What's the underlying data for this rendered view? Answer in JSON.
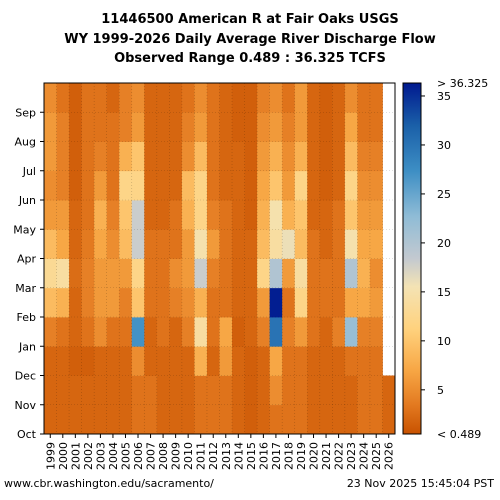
{
  "chart_data": {
    "type": "heatmap",
    "title": "11446500 American R at Fair Oaks USGS",
    "subtitle": "WY 1999-2026 Daily Average River Discharge Flow",
    "subtitle2": "Observed Range 0.489 : 36.325 TCFS",
    "x_categories": [
      "1999",
      "2000",
      "2001",
      "2002",
      "2003",
      "2004",
      "2005",
      "2006",
      "2007",
      "2008",
      "2009",
      "2010",
      "2011",
      "2012",
      "2013",
      "2014",
      "2015",
      "2016",
      "2017",
      "2018",
      "2019",
      "2020",
      "2021",
      "2022",
      "2023",
      "2024",
      "2025",
      "2026"
    ],
    "y_months": [
      "Oct",
      "Nov",
      "Dec",
      "Jan",
      "Feb",
      "Mar",
      "Apr",
      "May",
      "Jun",
      "Jul",
      "Aug",
      "Sep"
    ],
    "colorbar": {
      "ticks": [
        5,
        10,
        15,
        20,
        25,
        30,
        35
      ],
      "top_label": "> 36.325",
      "bottom_label": "< 0.489",
      "range": [
        0.489,
        36.325
      ]
    },
    "monthly_flow_tcfs": {
      "1999": [
        2,
        2,
        2,
        4,
        9,
        13,
        9,
        6,
        5,
        6,
        6,
        5
      ],
      "2000": [
        2,
        2,
        2,
        3,
        8,
        14,
        7,
        6,
        4,
        4,
        4,
        3
      ],
      "2001": [
        2,
        2,
        1.5,
        2,
        2,
        2.5,
        2,
        2,
        1.5,
        1.5,
        1.5,
        1.5
      ],
      "2002": [
        2,
        2,
        1.5,
        3,
        4,
        4,
        3.5,
        3,
        3,
        3,
        3,
        3
      ],
      "2003": [
        2,
        2,
        2,
        5,
        6,
        6,
        7,
        8,
        6,
        4,
        3,
        3
      ],
      "2004": [
        2,
        2,
        2,
        3,
        6,
        6,
        5,
        4,
        3,
        3,
        3,
        2
      ],
      "2005": [
        2,
        2,
        2,
        3,
        4,
        6,
        9,
        10,
        12,
        8,
        4,
        4
      ],
      "2006": [
        3,
        3,
        5,
        27,
        10,
        12,
        18,
        18,
        12,
        10,
        6,
        5
      ],
      "2007": [
        3,
        3,
        2,
        2,
        3,
        3,
        3,
        2,
        2,
        2,
        2,
        2
      ],
      "2008": [
        2,
        2,
        2,
        3,
        3,
        3,
        3,
        2,
        2,
        2,
        2,
        2
      ],
      "2009": [
        2,
        2,
        2,
        2,
        4,
        5,
        3,
        3,
        2,
        2,
        2,
        2
      ],
      "2010": [
        2,
        2,
        2,
        4,
        5,
        6,
        6,
        8,
        9,
        5,
        4,
        3
      ],
      "2011": [
        3,
        3,
        8,
        14,
        8,
        18,
        15,
        12,
        12,
        9,
        6,
        5
      ],
      "2012": [
        3,
        3,
        2,
        3,
        3,
        4,
        6,
        4,
        3,
        3,
        3,
        3
      ],
      "2013": [
        3,
        3,
        6,
        7,
        3,
        3,
        3,
        3,
        2,
        2,
        2,
        2
      ],
      "2014": [
        2,
        2,
        2,
        1.5,
        2,
        2,
        2,
        2,
        2,
        2,
        1.5,
        1.5
      ],
      "2015": [
        1.5,
        1.5,
        1.5,
        2,
        2,
        2,
        2,
        1.5,
        1.5,
        1.5,
        1.5,
        1.5
      ],
      "2016": [
        2,
        2,
        2,
        4,
        6,
        12,
        9,
        8,
        7,
        6,
        5,
        4
      ],
      "2017": [
        3,
        5,
        7,
        30,
        36,
        20,
        14,
        15,
        10,
        8,
        6,
        5
      ],
      "2018": [
        3,
        3,
        3,
        4,
        3,
        6,
        16,
        8,
        6,
        5,
        4,
        3
      ],
      "2019": [
        3,
        3,
        3,
        6,
        12,
        14,
        9,
        10,
        12,
        8,
        6,
        6
      ],
      "2020": [
        2,
        2,
        2,
        3,
        3,
        3,
        3,
        2,
        2,
        2,
        2,
        2
      ],
      "2021": [
        2,
        2,
        2,
        2,
        3,
        3,
        2,
        2,
        1.5,
        1.5,
        1.5,
        1.5
      ],
      "2022": [
        2,
        2,
        2,
        4,
        3,
        3,
        3,
        3,
        2,
        2,
        2,
        2
      ],
      "2023": [
        2,
        2,
        3,
        22,
        7,
        20,
        15,
        10,
        12,
        9,
        7,
        5
      ],
      "2024": [
        3,
        3,
        3,
        4,
        7,
        8,
        7,
        6,
        5,
        4,
        3,
        3
      ],
      "2025": [
        3,
        3,
        3,
        4,
        6,
        5,
        7,
        6,
        5,
        4,
        3,
        3
      ],
      "2026": [
        2,
        2,
        null,
        null,
        null,
        null,
        null,
        null,
        null,
        null,
        null,
        null
      ]
    },
    "grid": true
  },
  "footer": {
    "left": "www.cbr.washington.edu/sacramento/",
    "right": "23 Nov 2025 15:45:04 PST"
  }
}
